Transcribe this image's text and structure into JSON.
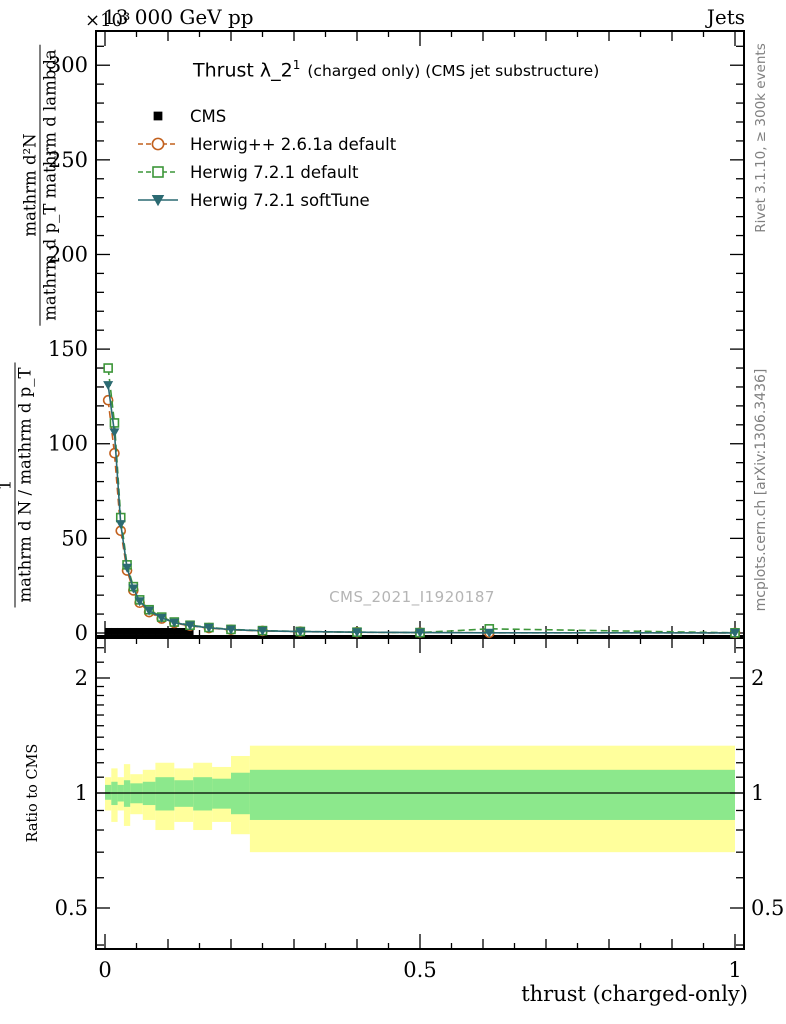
{
  "colors": {
    "band_yellow": "#ffff9c",
    "band_green": "#8ce88c",
    "frame": "#000000",
    "note_gray": "#808080",
    "watermark_gray": "#b5b5b5"
  },
  "header": {
    "left": "13 000 GeV pp",
    "right": "Jets"
  },
  "side_notes": {
    "right_top": "Rivet 3.1.10, ≥ 300k events",
    "right_bottom": "mcplots.cern.ch [arXiv:1306.3436]"
  },
  "watermark": "CMS_2021_I1920187",
  "title": {
    "main": "Thrust λ_2",
    "sup": "1",
    "rest": "(charged only) (CMS jet substructure)"
  },
  "y_multiplier": "×10³",
  "ylabel": {
    "outer_num": "1",
    "outer_den": "mathrm d N / mathrm d p_T",
    "inner_num": "mathrm d²N",
    "inner_den": "mathrm d p_T mathrm d lambda"
  },
  "ratio_ylabel": "Ratio to CMS",
  "xlabel": "thrust (charged-only)",
  "legend": [
    {
      "label": "CMS",
      "marker": "square-filled",
      "line": "none",
      "color": "#000000"
    },
    {
      "label": "Herwig++ 2.6.1a default",
      "marker": "circle-open",
      "line": "dashed",
      "color": "#c2601d"
    },
    {
      "label": "Herwig 7.2.1 default",
      "marker": "square-open",
      "line": "dashed",
      "color": "#3c9639"
    },
    {
      "label": "Herwig 7.2.1 softTune",
      "marker": "triangle-filled",
      "line": "solid",
      "color": "#2b6a72"
    }
  ],
  "chart_data": {
    "type": "line",
    "title": "Thrust λ_2^1 (charged only) (CMS jet substructure)",
    "xlabel": "thrust (charged-only)",
    "ylabel": "1/(dN/dp_T) · d²N/(dp_T dλ)",
    "y_units": "×10³",
    "xlim": [
      -0.016,
      1.016
    ],
    "ylim": [
      0,
      318
    ],
    "legend_position": "top-left",
    "grid": false,
    "x_ticks": [
      {
        "v": 0,
        "label": "0"
      },
      {
        "v": 0.5,
        "label": "0.5"
      },
      {
        "v": 1,
        "label": "1"
      }
    ],
    "y_ticks": [
      {
        "v": 0,
        "label": "0"
      },
      {
        "v": 50,
        "label": "50"
      },
      {
        "v": 100,
        "label": "100"
      },
      {
        "v": 150,
        "label": "150"
      },
      {
        "v": 200,
        "label": "200"
      },
      {
        "v": 250,
        "label": "250"
      },
      {
        "v": 300,
        "label": "300"
      }
    ],
    "series": [
      {
        "name": "CMS",
        "color": "#000000",
        "marker": "square-filled",
        "line": "none",
        "x": [
          0.005,
          0.015,
          0.025,
          0.035,
          0.045,
          0.055,
          0.065,
          0.075,
          0.085,
          0.095,
          0.105,
          0.115,
          0.125,
          0.135
        ],
        "y": [
          0.8,
          0.8,
          0.8,
          0.8,
          0.8,
          0.8,
          0.8,
          0.8,
          0.8,
          0.8,
          0.8,
          0.8,
          0.8,
          0.8
        ]
      },
      {
        "name": "Herwig++ 2.6.1a default",
        "color": "#c2601d",
        "marker": "circle-open",
        "line": "dashed",
        "x": [
          0.005,
          0.015,
          0.025,
          0.035,
          0.045,
          0.055,
          0.07,
          0.09,
          0.11,
          0.135,
          0.165,
          0.2,
          0.25,
          0.31,
          0.4,
          0.5,
          0.61,
          1.0
        ],
        "y": [
          123,
          95,
          54,
          33,
          22.5,
          16,
          11,
          7.6,
          5.3,
          3.8,
          2.6,
          1.7,
          1.1,
          0.7,
          0.4,
          0.2,
          0.12,
          0.05
        ]
      },
      {
        "name": "Herwig 7.2.1 default",
        "color": "#3c9639",
        "marker": "square-open",
        "line": "dashed",
        "x": [
          0.005,
          0.015,
          0.025,
          0.035,
          0.045,
          0.055,
          0.07,
          0.09,
          0.11,
          0.135,
          0.165,
          0.2,
          0.25,
          0.31,
          0.4,
          0.5,
          0.61,
          1.0
        ],
        "y": [
          140,
          111,
          61,
          36,
          24.5,
          17.5,
          12.3,
          8.4,
          5.8,
          4.1,
          2.9,
          1.9,
          1.25,
          0.8,
          0.45,
          0.22,
          2.2,
          0.1
        ]
      },
      {
        "name": "Herwig 7.2.1 softTune",
        "color": "#2b6a72",
        "marker": "triangle-filled",
        "line": "solid",
        "x": [
          0.005,
          0.015,
          0.025,
          0.035,
          0.045,
          0.055,
          0.07,
          0.09,
          0.11,
          0.135,
          0.165,
          0.2,
          0.25,
          0.31,
          0.4,
          0.5,
          0.61,
          1.0
        ],
        "y": [
          131,
          106,
          57.5,
          34.5,
          23.5,
          16.8,
          11.8,
          8.0,
          5.5,
          3.95,
          2.75,
          1.8,
          1.15,
          0.75,
          0.42,
          0.21,
          0.11,
          0.05
        ]
      }
    ],
    "ratio": {
      "label": "Ratio to CMS",
      "scale": "log",
      "ylim": [
        0.39,
        2.56
      ],
      "y_ticks": [
        {
          "v": 0.5,
          "label": "0.5"
        },
        {
          "v": 1,
          "label": "1"
        },
        {
          "v": 2,
          "label": "2"
        }
      ],
      "minor_ticks": [
        0.4,
        0.6,
        0.7,
        0.8,
        0.9,
        1.1,
        1.2,
        1.3,
        1.4,
        1.5,
        1.6,
        1.7,
        1.8,
        1.9,
        2.2,
        2.4
      ],
      "unity_line": 1,
      "bands": [
        {
          "x0": 0.0,
          "x1": 0.01,
          "yellow": [
            0.9,
            1.1
          ],
          "green": [
            0.96,
            1.05
          ]
        },
        {
          "x0": 0.01,
          "x1": 0.02,
          "yellow": [
            0.84,
            1.16
          ],
          "green": [
            0.93,
            1.07
          ]
        },
        {
          "x0": 0.02,
          "x1": 0.03,
          "yellow": [
            0.9,
            1.1
          ],
          "green": [
            0.95,
            1.05
          ]
        },
        {
          "x0": 0.03,
          "x1": 0.04,
          "yellow": [
            0.82,
            1.19
          ],
          "green": [
            0.92,
            1.08
          ]
        },
        {
          "x0": 0.04,
          "x1": 0.06,
          "yellow": [
            0.88,
            1.12
          ],
          "green": [
            0.94,
            1.06
          ]
        },
        {
          "x0": 0.06,
          "x1": 0.08,
          "yellow": [
            0.85,
            1.15
          ],
          "green": [
            0.93,
            1.07
          ]
        },
        {
          "x0": 0.08,
          "x1": 0.11,
          "yellow": [
            0.8,
            1.2
          ],
          "green": [
            0.9,
            1.1
          ]
        },
        {
          "x0": 0.11,
          "x1": 0.14,
          "yellow": [
            0.84,
            1.16
          ],
          "green": [
            0.92,
            1.08
          ]
        },
        {
          "x0": 0.14,
          "x1": 0.17,
          "yellow": [
            0.8,
            1.2
          ],
          "green": [
            0.9,
            1.1
          ]
        },
        {
          "x0": 0.17,
          "x1": 0.2,
          "yellow": [
            0.84,
            1.17
          ],
          "green": [
            0.91,
            1.09
          ]
        },
        {
          "x0": 0.2,
          "x1": 0.23,
          "yellow": [
            0.78,
            1.25
          ],
          "green": [
            0.88,
            1.13
          ]
        },
        {
          "x0": 0.23,
          "x1": 1.0,
          "yellow": [
            0.7,
            1.33
          ],
          "green": [
            0.85,
            1.15
          ]
        }
      ]
    }
  }
}
